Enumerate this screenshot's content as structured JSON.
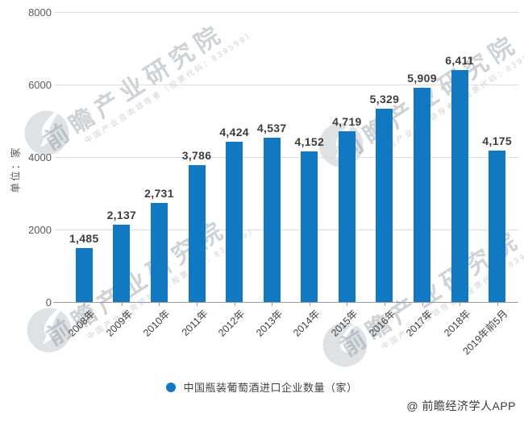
{
  "chart_data": {
    "type": "bar",
    "title": "",
    "categories": [
      "2008年",
      "2009年",
      "2010年",
      "2011年",
      "2012年",
      "2013年",
      "2014年",
      "2015年",
      "2016年",
      "2017年",
      "2018年",
      "2019年前5月"
    ],
    "values": [
      1485,
      2137,
      2731,
      3786,
      4424,
      4537,
      4152,
      4719,
      5329,
      5909,
      6411,
      4175
    ],
    "series_name": "中国瓶装葡萄酒进口企业数量（家）",
    "xlabel": "",
    "ylabel": "单位：家",
    "ylim": [
      0,
      8000
    ],
    "yticks": [
      0,
      2000,
      4000,
      6000,
      8000
    ],
    "grid": true,
    "legend_position": "bottom-center",
    "bar_color": "#1179c2",
    "gridline_color": "#dcdcdc",
    "axis_color": "#9b9b9b"
  },
  "legend": {
    "label": "中国瓶装葡萄酒进口企业数量（家）"
  },
  "watermark": {
    "logo_name": "qianzhan-swoosh-logo",
    "brand_text": "前瞻产业研究院",
    "brand_subtext": "中国产业咨询领导者（股票代码：839599）"
  },
  "footer": {
    "credit": "@ 前瞻经济学人APP"
  }
}
